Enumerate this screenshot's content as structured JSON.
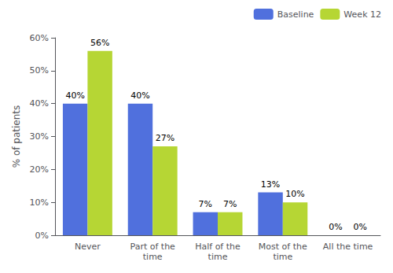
{
  "chart_data": {
    "type": "bar",
    "categories": [
      "Never",
      "Part of the\ntime",
      "Half of the\ntime",
      "Most of the\ntime",
      "All the time"
    ],
    "series": [
      {
        "name": "Baseline",
        "values": [
          40,
          40,
          7,
          13,
          0
        ],
        "value_labels": [
          "40%",
          "40%",
          "7%",
          "13%",
          "0%"
        ]
      },
      {
        "name": "Week 12",
        "values": [
          56,
          27,
          7,
          10,
          0
        ],
        "value_labels": [
          "56%",
          "27%",
          "7%",
          "10%",
          "0%"
        ]
      }
    ],
    "ylabel": "% of patients",
    "ylim": [
      0,
      60
    ],
    "yticks": [
      {
        "value": 0,
        "label": "0%"
      },
      {
        "value": 10,
        "label": "10%"
      },
      {
        "value": 20,
        "label": "20%"
      },
      {
        "value": 30,
        "label": "30%"
      },
      {
        "value": 40,
        "label": "40%"
      },
      {
        "value": 50,
        "label": "50%"
      },
      {
        "value": 60,
        "label": "60%"
      }
    ],
    "data_labels": true,
    "legend": "upper right",
    "grid": false
  }
}
